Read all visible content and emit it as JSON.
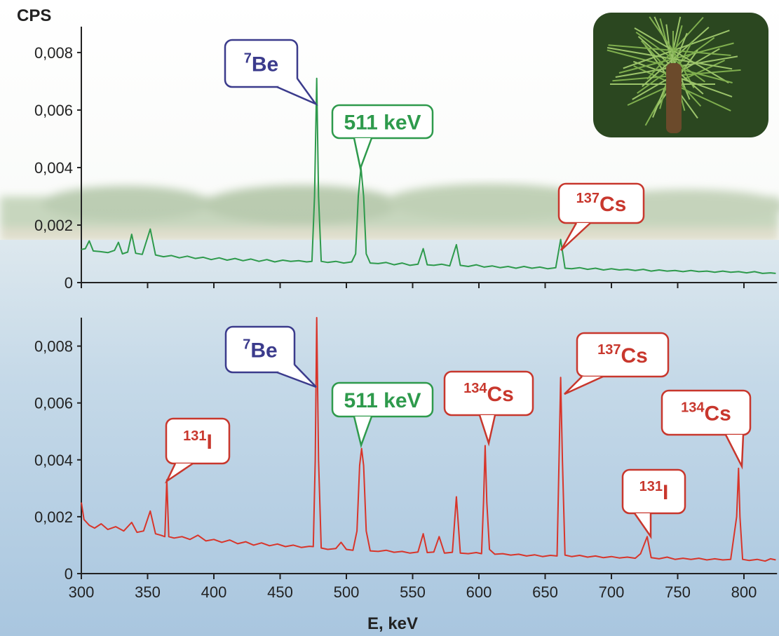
{
  "chart_data": [
    {
      "type": "line",
      "ylabel": "CPS",
      "xlim": [
        300,
        825
      ],
      "ylim": [
        0,
        0.0089
      ],
      "yticks": [
        0,
        {
          "value": 0.002,
          "label": "0,002"
        },
        {
          "value": 0.004,
          "label": "0,004"
        },
        {
          "value": 0.006,
          "label": "0,006"
        },
        {
          "value": 0.008,
          "label": "0,008"
        }
      ],
      "x": [
        300,
        303,
        306,
        309,
        314,
        320,
        325,
        328,
        331,
        335,
        338,
        341,
        346,
        352,
        356,
        362,
        368,
        374,
        380,
        386,
        392,
        398,
        404,
        410,
        416,
        422,
        428,
        434,
        440,
        446,
        452,
        458,
        464,
        470,
        474,
        476,
        477.6,
        479,
        481,
        486,
        492,
        498,
        504,
        507,
        509,
        511,
        513,
        515,
        518,
        524,
        530,
        536,
        542,
        548,
        554,
        558,
        561,
        566,
        572,
        578,
        583,
        586,
        592,
        598,
        604,
        610,
        616,
        622,
        628,
        634,
        640,
        646,
        652,
        658,
        661.7,
        665,
        670,
        676,
        682,
        688,
        694,
        700,
        706,
        712,
        718,
        724,
        730,
        736,
        742,
        748,
        754,
        760,
        766,
        772,
        778,
        784,
        790,
        796,
        802,
        808,
        814,
        820,
        824
      ],
      "series": [
        {
          "color": "#2e9a4c",
          "values": [
            0.00115,
            0.00118,
            0.00145,
            0.0011,
            0.00108,
            0.00104,
            0.00112,
            0.0014,
            0.001,
            0.00106,
            0.00168,
            0.00102,
            0.00098,
            0.00186,
            0.00096,
            0.0009,
            0.00094,
            0.00086,
            0.00092,
            0.00084,
            0.00088,
            0.0008,
            0.00086,
            0.00078,
            0.00084,
            0.00076,
            0.00082,
            0.00074,
            0.0008,
            0.00072,
            0.00078,
            0.00074,
            0.00076,
            0.00072,
            0.00074,
            0.003,
            0.0071,
            0.003,
            0.00074,
            0.0007,
            0.00074,
            0.00068,
            0.00072,
            0.001,
            0.003,
            0.004,
            0.003,
            0.001,
            0.00068,
            0.00066,
            0.0007,
            0.00062,
            0.00068,
            0.0006,
            0.00064,
            0.00118,
            0.00062,
            0.0006,
            0.00064,
            0.00058,
            0.00132,
            0.0006,
            0.00056,
            0.00062,
            0.00054,
            0.00058,
            0.00052,
            0.00056,
            0.0005,
            0.00056,
            0.0005,
            0.00054,
            0.00048,
            0.00052,
            0.0015,
            0.0005,
            0.00048,
            0.00052,
            0.00046,
            0.0005,
            0.00044,
            0.00048,
            0.00044,
            0.00046,
            0.00042,
            0.00046,
            0.0004,
            0.00044,
            0.0004,
            0.00042,
            0.00038,
            0.00042,
            0.00038,
            0.0004,
            0.00036,
            0.0004,
            0.00036,
            0.00038,
            0.00034,
            0.00038,
            0.00032,
            0.00034,
            0.00032
          ]
        }
      ],
      "annotations": [
        {
          "sup": "7",
          "label": "Be",
          "color": "#3b3b8c"
        },
        {
          "label": "511 keV",
          "color": "#2e9a4c"
        },
        {
          "sup": "137",
          "label": "Cs",
          "color": "#c8372d"
        }
      ]
    },
    {
      "type": "line",
      "xlabel": "E, keV",
      "xlim": [
        300,
        825
      ],
      "xticks": [
        300,
        350,
        400,
        450,
        500,
        550,
        600,
        650,
        700,
        750,
        800
      ],
      "ylim": [
        0,
        0.009
      ],
      "yticks": [
        0,
        {
          "value": 0.002,
          "label": "0,002"
        },
        {
          "value": 0.004,
          "label": "0,004"
        },
        {
          "value": 0.006,
          "label": "0,006"
        },
        {
          "value": 0.008,
          "label": "0,008"
        }
      ],
      "x": [
        300,
        302,
        306,
        310,
        315,
        320,
        326,
        332,
        338,
        342,
        347,
        352,
        356,
        360,
        363,
        364.5,
        366,
        370,
        376,
        382,
        388,
        394,
        400,
        406,
        412,
        418,
        424,
        430,
        436,
        442,
        448,
        454,
        460,
        466,
        472,
        475,
        476.5,
        477.6,
        479,
        481,
        486,
        492,
        496,
        500,
        505,
        508,
        510,
        511.5,
        513,
        515,
        518,
        524,
        530,
        536,
        542,
        548,
        554,
        558,
        561,
        566,
        570,
        574,
        580,
        583,
        586,
        592,
        598,
        602,
        603.5,
        604.7,
        606,
        608,
        612,
        618,
        624,
        630,
        636,
        642,
        648,
        654,
        659,
        660.5,
        661.7,
        663,
        665,
        670,
        676,
        682,
        688,
        694,
        700,
        706,
        712,
        718,
        722,
        727,
        730,
        736,
        742,
        748,
        754,
        760,
        766,
        772,
        778,
        784,
        790,
        794.5,
        795.9,
        797,
        799,
        804,
        810,
        816,
        820,
        824
      ],
      "series": [
        {
          "color": "#d8352a",
          "values": [
            0.0025,
            0.0019,
            0.0017,
            0.0016,
            0.00175,
            0.00155,
            0.00165,
            0.0015,
            0.0018,
            0.00145,
            0.0015,
            0.0022,
            0.0014,
            0.00135,
            0.0013,
            0.0033,
            0.0013,
            0.00125,
            0.0013,
            0.0012,
            0.00135,
            0.00115,
            0.0012,
            0.0011,
            0.00118,
            0.00105,
            0.00112,
            0.001,
            0.00108,
            0.00098,
            0.00104,
            0.00095,
            0.001,
            0.00092,
            0.00096,
            0.00095,
            0.004,
            0.009,
            0.004,
            0.0009,
            0.00085,
            0.00088,
            0.0011,
            0.00085,
            0.00082,
            0.0015,
            0.0038,
            0.0044,
            0.0038,
            0.0015,
            0.0008,
            0.00078,
            0.00082,
            0.00075,
            0.00078,
            0.00072,
            0.00076,
            0.0014,
            0.00074,
            0.00076,
            0.0013,
            0.00072,
            0.00075,
            0.0027,
            0.00072,
            0.0007,
            0.00074,
            0.0007,
            0.0025,
            0.0045,
            0.0025,
            0.00085,
            0.00068,
            0.0007,
            0.00065,
            0.00068,
            0.00062,
            0.00066,
            0.0006,
            0.00064,
            0.00062,
            0.004,
            0.0069,
            0.004,
            0.00065,
            0.0006,
            0.00064,
            0.00058,
            0.00062,
            0.00056,
            0.0006,
            0.00055,
            0.00058,
            0.00054,
            0.0007,
            0.0013,
            0.00056,
            0.00052,
            0.00058,
            0.0005,
            0.00054,
            0.0005,
            0.00054,
            0.00048,
            0.00052,
            0.00048,
            0.0005,
            0.002,
            0.0037,
            0.002,
            0.0005,
            0.00046,
            0.0005,
            0.00044,
            0.00052,
            0.00048
          ]
        }
      ],
      "annotations": [
        {
          "sup": "7",
          "label": "Be",
          "color": "#3b3b8c"
        },
        {
          "label": "511 keV",
          "color": "#2e9a4c"
        },
        {
          "sup": "134",
          "label": "Cs",
          "color": "#c8372d"
        },
        {
          "sup": "137",
          "label": "Cs",
          "color": "#c8372d"
        },
        {
          "sup": "131",
          "label": "I",
          "color": "#c8372d"
        },
        {
          "sup": "134",
          "label": "Cs",
          "color": "#c8372d"
        },
        {
          "sup": "131",
          "label": "I",
          "color": "#c8372d"
        }
      ]
    }
  ]
}
